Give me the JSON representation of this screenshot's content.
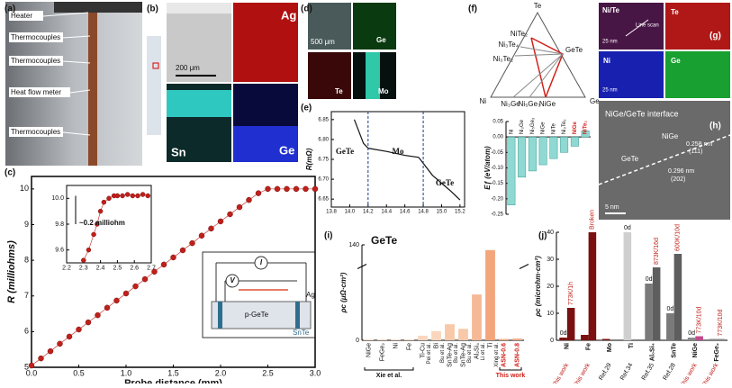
{
  "panels": {
    "labels": [
      "(a)",
      "(b)",
      "(c)",
      "(d)",
      "(e)",
      "(f)",
      "(g)",
      "(h)",
      "(i)",
      "(j)"
    ],
    "a": [
      "Heater",
      "Thermocouples",
      "Thermocouples",
      "Heat flow meter",
      "Thermocouples"
    ],
    "b": [
      "200 μm",
      "Ag",
      "Sn",
      "Ge"
    ],
    "c_schematic": [
      "I",
      "V",
      "p-GeTe",
      "Ag",
      "SnTe"
    ],
    "d": [
      "500 μm",
      "Ge",
      "Te",
      "Mo"
    ],
    "f_ternary": [
      "Te",
      "NiTe₂",
      "Ni₃Te₄",
      "Ni₃Te₂",
      "GeTe",
      "Ni",
      "Ni₃Ge",
      "Ni₅Ge₃",
      "NiGe",
      "Ge"
    ],
    "g": [
      "Ni/Te",
      "Te",
      "Ni",
      "Ge",
      "25 nm",
      "25 nm",
      "Line scan"
    ],
    "h": [
      "NiGe/GeTe interface",
      "NiGe",
      "GeTe",
      "0.258 nm",
      "(111)",
      "0.296 nm",
      "(202)",
      "5 nm"
    ]
  },
  "chart_data": [
    {
      "type": "line",
      "xlabel": "Probe distance (mm)",
      "ylabel": "R (milliohms)",
      "xlim": [
        0,
        3
      ],
      "ylim": [
        5,
        10.35
      ],
      "xticks": [
        {
          "value": 0,
          "label": "0.0"
        },
        0.5,
        {
          "value": 1,
          "label": "1.0"
        },
        1.5,
        {
          "value": 2,
          "label": "2.0"
        },
        2.5,
        {
          "value": 3,
          "label": "3.0"
        }
      ],
      "yticks": [
        5,
        6,
        7,
        8,
        9,
        10
      ],
      "series": [
        {
          "color": "#c0201a",
          "x": [
            0,
            0.1,
            0.2,
            0.3,
            0.4,
            0.5,
            0.6,
            0.7,
            0.8,
            0.9,
            1.0,
            1.1,
            1.2,
            1.3,
            1.4,
            1.5,
            1.6,
            1.7,
            1.8,
            1.9,
            2.0,
            2.1,
            2.2,
            2.3,
            2.4,
            2.5,
            2.6,
            2.7,
            2.8,
            2.9,
            3.0
          ],
          "values": [
            5.05,
            5.25,
            5.45,
            5.66,
            5.86,
            6.06,
            6.26,
            6.46,
            6.67,
            6.87,
            7.07,
            7.27,
            7.47,
            7.68,
            7.88,
            8.08,
            8.28,
            8.48,
            8.69,
            8.89,
            9.09,
            9.29,
            9.49,
            9.69,
            9.88,
            10.0,
            10.0,
            10.0,
            10.0,
            10.0,
            10.0
          ]
        }
      ]
    },
    {
      "type": "line",
      "annotation": "~0.2 milliohm",
      "xlim": [
        2.2,
        2.7
      ],
      "ylim": [
        9.5,
        10.1
      ],
      "xticks": [
        2.2,
        2.3,
        2.4,
        2.5,
        2.6,
        2.7
      ],
      "yticks": [
        9.6,
        9.8,
        {
          "value": 10,
          "label": "10.0"
        }
      ],
      "series": [
        {
          "color": "#c0201a",
          "x": [
            2.3,
            2.33,
            2.36,
            2.38,
            2.4,
            2.42,
            2.45,
            2.48,
            2.5,
            2.53,
            2.56,
            2.59,
            2.62,
            2.65,
            2.68
          ],
          "values": [
            9.52,
            9.6,
            9.72,
            9.8,
            9.9,
            9.97,
            10.0,
            10.02,
            10.02,
            10.02,
            10.03,
            10.02,
            10.02,
            10.03,
            10.02
          ]
        }
      ]
    },
    {
      "type": "line",
      "ylabel": "R(mΩ)",
      "annotations": [
        "GeTe",
        "Mo",
        "GeTe"
      ],
      "region_bounds": [
        14.2,
        14.8
      ],
      "xlim": [
        13.8,
        15.25
      ],
      "ylim": [
        6.63,
        6.87
      ],
      "xticks": [
        13.8,
        {
          "value": 14,
          "label": "14.0"
        },
        14.2,
        14.4,
        14.6,
        14.8,
        {
          "value": 15,
          "label": "15.0"
        },
        15.2
      ],
      "yticks": [
        6.65,
        {
          "value": 6.7,
          "label": "6.70"
        },
        6.75,
        {
          "value": 6.8,
          "label": "6.80"
        },
        6.85
      ],
      "series": [
        {
          "color": "#111111",
          "x": [
            14.05,
            14.1,
            14.15,
            14.2,
            14.4,
            14.6,
            14.75,
            14.8,
            14.9,
            15.0,
            15.1,
            15.2
          ],
          "values": [
            6.85,
            6.82,
            6.79,
            6.778,
            6.77,
            6.76,
            6.755,
            6.74,
            6.71,
            6.69,
            6.67,
            6.648
          ]
        }
      ]
    },
    {
      "type": "bar",
      "ylabel": "Eƒ (eV/atom)",
      "ylim": [
        -0.25,
        0.05
      ],
      "yticks": [
        -0.25,
        {
          "value": -0.2,
          "label": "-0.20"
        },
        -0.15,
        {
          "value": -0.1,
          "label": "-0.10"
        },
        -0.05,
        {
          "value": 0,
          "label": "0.00"
        },
        0.05
      ],
      "categories": [
        "Ni",
        "Ni₃Ge",
        "Ni₅Ge₃",
        "NiGe",
        "NiTe",
        "Ni₃Te₂",
        "NiGe",
        "NiTe₂"
      ],
      "category_colors": [
        "#111111",
        "#111111",
        "#111111",
        "#111111",
        "#111111",
        "#111111",
        "#d0201a",
        "#d0201a"
      ],
      "series": [
        {
          "colors": [
            "#8fd9d2",
            "#8fd9d2",
            "#8fd9d2",
            "#8fd9d2",
            "#8fd9d2",
            "#8fd9d2",
            "#8fd9d2",
            "#8fd9d2"
          ],
          "values": [
            -0.22,
            -0.13,
            -0.11,
            -0.09,
            -0.07,
            -0.05,
            -0.03,
            0.02
          ]
        }
      ]
    },
    {
      "type": "bar",
      "title": "GeTe",
      "ylabel": "ρc (μΩ·cm²)",
      "ylim": [
        0,
        140
      ],
      "ybreak": [
        30,
        120
      ],
      "yticks": [
        0,
        140
      ],
      "categories": [
        "NiGe",
        "FeGe₂",
        "Ni",
        "Fe",
        "Ti-Cu",
        "Bi",
        "SnTe-Ag",
        "SnTe-Ag",
        "Al₂Si₄",
        "Ti",
        "ASN-0.6",
        "ASN-0.8"
      ],
      "category_colors": [
        "#111111",
        "#111111",
        "#111111",
        "#111111",
        "#111111",
        "#111111",
        "#111111",
        "#111111",
        "#111111",
        "#111111",
        "#d0201a",
        "#d0201a"
      ],
      "sources": [
        "Xie et al.",
        null,
        null,
        null,
        "Pei et al.",
        "Bu et al.",
        "Bu et al.",
        "Bu et al.",
        "Li et al.",
        "Xing et al.",
        "This work",
        null
      ],
      "series": [
        {
          "colors": [
            "#fbe3d2",
            "#fbe3d2",
            "#fbe3d2",
            "#fbe3d2",
            "#f9d6bd",
            "#f9d6bd",
            "#f7c9a9",
            "#f7c9a9",
            "#f5b996",
            "#f3a57c",
            "#f4b08c",
            "#f4b08c"
          ],
          "values": [
            0.5,
            0.5,
            0.5,
            0.5,
            2,
            4,
            7,
            5,
            20,
            135,
            0.6,
            0.8
          ]
        }
      ]
    },
    {
      "type": "bar",
      "ylabel": "ρc (microhm·cm²)",
      "ylim": [
        0,
        40
      ],
      "yticks": [
        0,
        10,
        20,
        30,
        40
      ],
      "categories": [
        "Ni",
        "Fe",
        "Mo",
        "Ti",
        "Al₀Si₄",
        "SnTe",
        "NiGe",
        "FeGe₂"
      ],
      "sources": [
        "This work",
        "This work",
        "Ref.29",
        "Ref.34",
        "Ref.35",
        "Ref.28",
        "This work",
        "This work"
      ],
      "source_colors": [
        "#c0201a",
        "#c0201a",
        "#111111",
        "#111111",
        "#111111",
        "#111111",
        "#c0201a",
        "#c0201a"
      ],
      "series": [
        {
          "colors": [
            "#7a1010",
            "#7a1010",
            "#7a1010",
            "#cfcfcf",
            "#7a7a7a",
            "#7a7a7a",
            "#8a8a8a",
            "#8a8a8a"
          ],
          "values": [
            1,
            2,
            0.5,
            40,
            21,
            10,
            1,
            0.5
          ],
          "bar_labels": [
            "0d",
            null,
            null,
            "0d",
            "0d",
            "0d",
            "0d",
            null
          ]
        },
        {
          "colors": [
            "#7a1010",
            "#7a1010",
            "#7a1010",
            "#cfcfcf",
            "#5e5e5e",
            "#5e5e5e",
            "#c04a8a",
            "#8a8a8a"
          ],
          "values": [
            12,
            40,
            0,
            0,
            27,
            32,
            1.5,
            0.5
          ],
          "bar_labels": [
            "773K/1h",
            "Broken",
            null,
            null,
            "873K/16d",
            "600K/10d",
            "773K/10d",
            "773K/10d"
          ]
        }
      ]
    }
  ]
}
